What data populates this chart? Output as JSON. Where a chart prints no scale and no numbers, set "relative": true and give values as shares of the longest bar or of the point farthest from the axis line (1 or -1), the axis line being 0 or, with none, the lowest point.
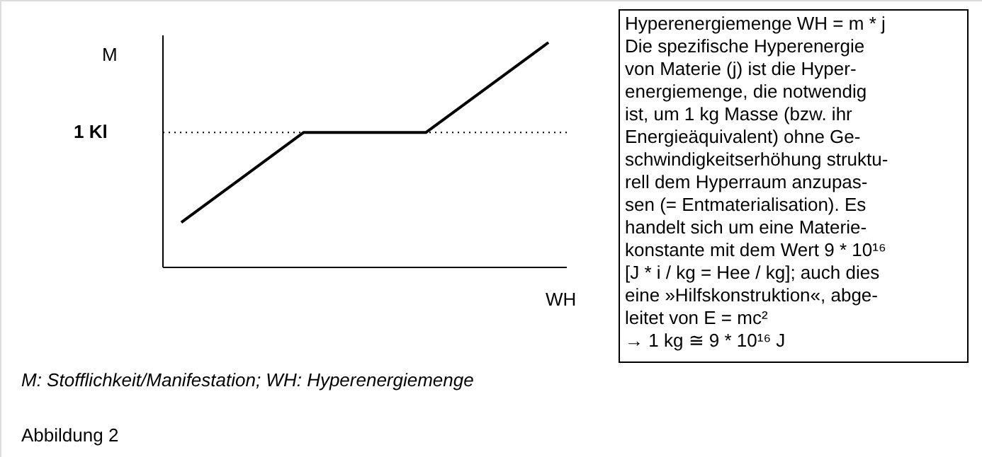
{
  "chart_data": {
    "type": "line",
    "relative": true,
    "categories": [
      null,
      null,
      null,
      null
    ],
    "series": [
      {
        "color": "#000000",
        "values": [
          0.2,
          0.6,
          0.6,
          1.0
        ]
      }
    ],
    "ylabel": "M",
    "xlabel": "WH",
    "ref_lines": [
      {
        "axis": "y",
        "value": 0.6,
        "label": "1 Kl",
        "line_style": "dotted",
        "color": "#000000"
      }
    ],
    "marker": "none",
    "line_style": "solid",
    "grid": false,
    "annotations": [
      "M: Stofflichkeit/Manifestation;  WH: Hyperenergiemenge",
      "Abbildung 2",
      "Hyperenergiemenge WH = m * j\nDie spezifische Hyperenergie\nvon Materie (j) ist die Hyper-\nenergiemenge, die notwendig\nist, um 1 kg Masse (bzw. ihr\nEnergieäquivalent) ohne Ge-\nschwindigkeitserhöhung struktu-\nrell dem Hyperraum anzupas-\nsen (= Entmaterialisation). Es\nhandelt sich um eine Materie-\nkonstante mit dem Wert 9 * 10¹⁶\n[J * i / kg = Hee / kg]; auch dies\neine »Hilfskonstruktion«, abge-\nleitet von E = mc²\n→ 1 kg ≅ 9 * 10¹⁶ J"
    ]
  }
}
